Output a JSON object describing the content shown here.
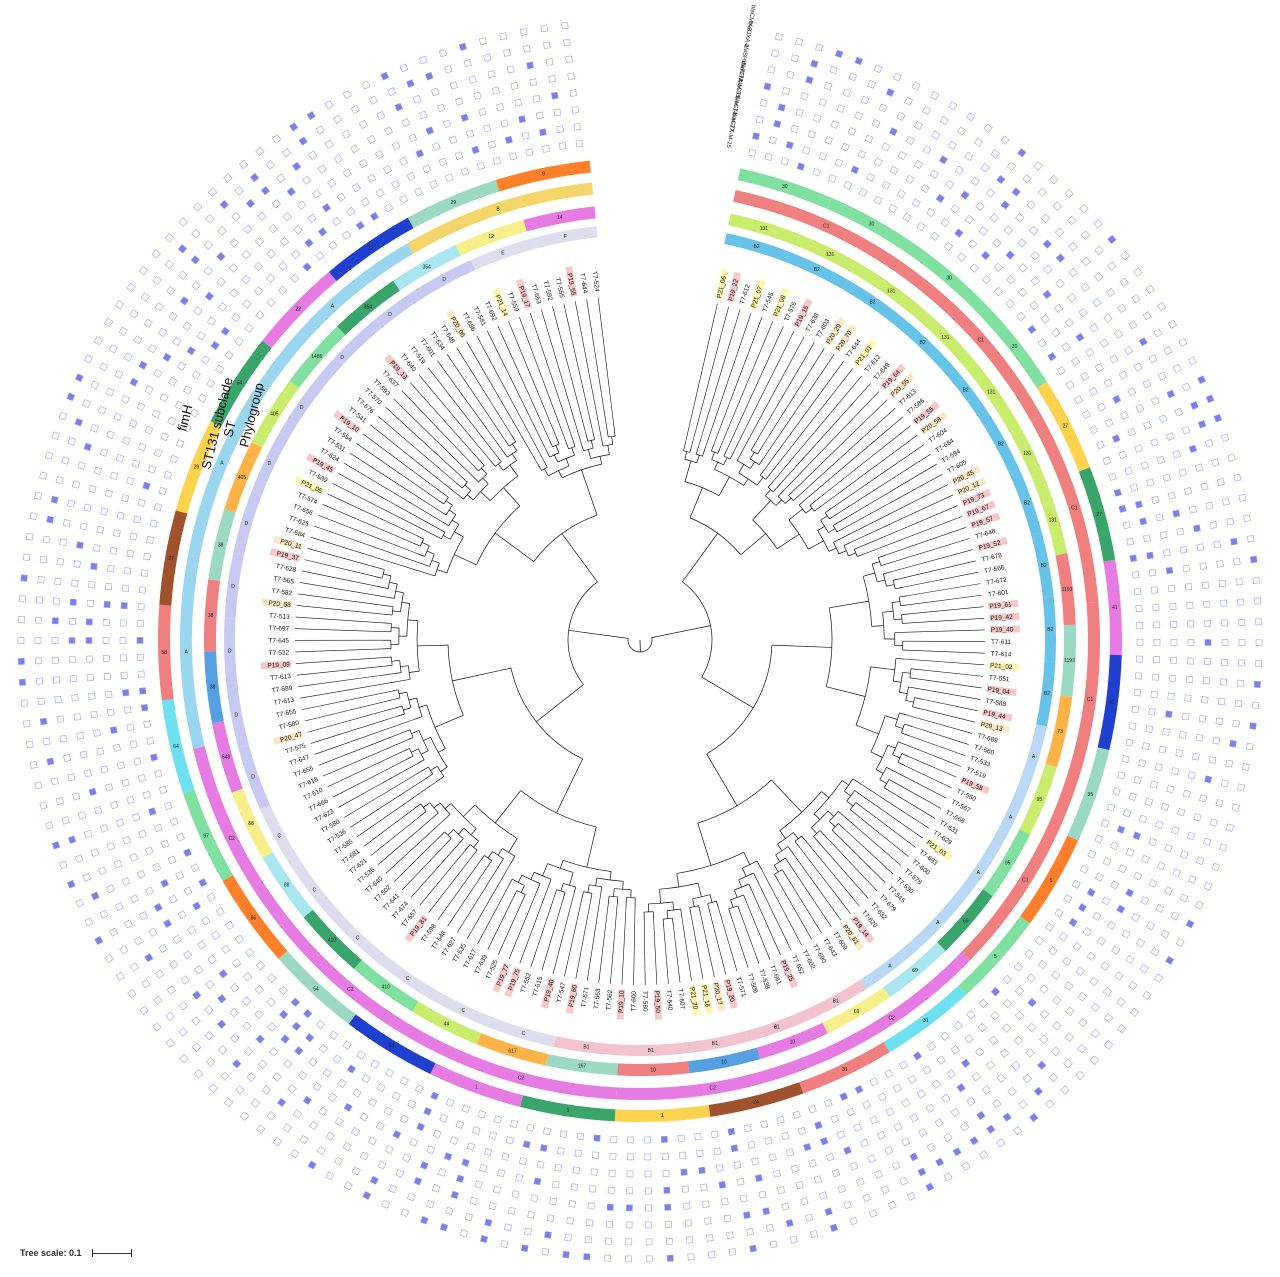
{
  "ring_labels": {
    "phylogroup": "Phylogroup",
    "st": "ST",
    "st131_subclade": "ST131 subclade",
    "fimh": "fimH"
  },
  "tree_scale": {
    "label": "Tree scale: 0.1"
  },
  "gene_labels": [
    "blaCTX-M-15",
    "blaCTX-M-27",
    "blaCTX-M-14",
    "blaCTX-M-55",
    "blaTEM",
    "blaSHV",
    "blaOXA-1",
    "blaCMY-2"
  ],
  "leaf_labels": [
    "P21_06",
    "P19_22",
    "T7-612",
    "P21_07",
    "T7-545",
    "P21_08",
    "T7-576",
    "P19_15",
    "T7-638",
    "T7-603",
    "P20_29",
    "P20_70",
    "T7-644",
    "P21_01",
    "T7-612",
    "T7-649",
    "P19_64",
    "P20_55",
    "T7-613",
    "T7-586",
    "P19_55",
    "P20_58",
    "T7-604",
    "T7-684",
    "T7-594",
    "T7-605",
    "P20_45",
    "P20_12",
    "P19_73",
    "P19_67",
    "P19_57",
    "T7-648",
    "P19_52",
    "T7-678",
    "T7-566",
    "T7-672",
    "T7-601",
    "P19_61",
    "P19_42",
    "P19_40",
    "T7-611",
    "T7-614",
    "P21_02",
    "T7-551",
    "P19_04",
    "T7-588",
    "P19_44",
    "P20_13",
    "T7-689",
    "T7-560",
    "T7-533",
    "T7-519",
    "P19_58",
    "T7-550",
    "T7-567",
    "T7-668",
    "T7-631",
    "T7-629",
    "P21_03",
    "T7-693",
    "T7-600",
    "T7-578",
    "T7-590",
    "T7-545",
    "T7-679",
    "T7-632",
    "T7-620",
    "P19_14",
    "P20_51",
    "T7-609",
    "T7-643",
    "T7-690",
    "T7-602",
    "T7-652",
    "P19_25",
    "T7-661",
    "T7-538",
    "T7-506",
    "T7-571",
    "P19_20",
    "P20_17",
    "P21_16",
    "P21_20",
    "T7-607",
    "T7-540",
    "P19_50",
    "T7-580",
    "T7-600",
    "P19_10",
    "T7-562",
    "T7-563",
    "T7-671",
    "P19_60",
    "T7-547",
    "P19_40",
    "T7-515",
    "T7-552",
    "P19_75",
    "P19_77",
    "T7-525",
    "T7-639",
    "T7-617",
    "T7-535",
    "T7-627",
    "T7-548",
    "T7-598",
    "P19_81",
    "T7-557",
    "T7-674",
    "T7-641",
    "T7-502",
    "T7-640",
    "T7-536",
    "T7-621",
    "T7-681",
    "T7-585",
    "T7-526",
    "T7-580",
    "T7-623",
    "T7-666",
    "T7-510",
    "T7-618",
    "T7-655",
    "T7-647",
    "T7-575",
    "P20_47",
    "T7-580",
    "T7-655",
    "T7-613",
    "T7-589",
    "T7-613",
    "P19_09",
    "T7-532",
    "T7-645",
    "T7-697",
    "T7-513",
    "P20_58",
    "T7-582",
    "T7-565",
    "T7-628",
    "P19_37",
    "P20_11",
    "T7-584",
    "T7-625",
    "T7-656",
    "T7-574",
    "P21_05",
    "T7-589",
    "P19_45",
    "T7-624",
    "T7-531",
    "T7-554",
    "P19_10",
    "T7-541",
    "T7-676",
    "T7-570",
    "T7-593",
    "T7-637",
    "P19_13",
    "T7-640",
    "T7-519",
    "T7-601",
    "T7-634",
    "T7-646",
    "P20_06",
    "T7-686",
    "T7-581",
    "T7-692",
    "P21_14",
    "T7-559",
    "P19_17",
    "T7-653",
    "T7-592",
    "T7-555",
    "P19_55",
    "T7-644",
    "T7-524"
  ],
  "phylogroup_values": [
    "B2",
    "B2",
    "B2",
    "B2",
    "B2",
    "B2",
    "B2",
    "B2",
    "B2",
    "B2",
    "A",
    "A",
    "A",
    "A",
    "A",
    "B1",
    "B1",
    "B1",
    "B1",
    "B1",
    "C",
    "C",
    "C",
    "C",
    "C",
    "C",
    "D",
    "D",
    "D",
    "D",
    "D",
    "D",
    "D",
    "D",
    "D",
    "D",
    "E",
    "F"
  ],
  "st_values": [
    "131",
    "131",
    "131",
    "131",
    "131",
    "131",
    "131",
    "1193",
    "1193",
    "73",
    "95",
    "95",
    "69",
    "69",
    "69",
    "10",
    "10",
    "10",
    "167",
    "617",
    "44",
    "410",
    "410",
    "88",
    "88",
    "648",
    "38",
    "38",
    "38",
    "405",
    "405",
    "1485",
    "354",
    "354",
    "12",
    "14"
  ],
  "st131_subclade_values": [
    "C1",
    "C1",
    "C1",
    "C1",
    "C1",
    "C2",
    "C2",
    "C2",
    "C2",
    "C2",
    "A",
    "A",
    "A",
    "B"
  ],
  "fimh_values": [
    "30",
    "30",
    "30",
    "30",
    "27",
    "27",
    "41",
    "41",
    "35",
    "5",
    "5",
    "31",
    "31",
    "24",
    "1",
    "1",
    "1",
    "54",
    "54",
    "86",
    "97",
    "64",
    "58",
    "27",
    "39",
    "54",
    "22",
    "22",
    "29",
    "9"
  ],
  "colors": {
    "phylogroup_b2": "#66c2e8",
    "phylogroup_a": "#b8d8f5",
    "phylogroup_b1": "#f2c3cf",
    "phylogroup_d": "#c7c9f3",
    "st131": "#c9ec6d",
    "subclade_c1": "#f07f7f",
    "subclade_c2": "#e57be3",
    "fimh_30": "#7fe0a0",
    "presence": "#7b80e8",
    "absence_border": "#9aa0e8"
  }
}
